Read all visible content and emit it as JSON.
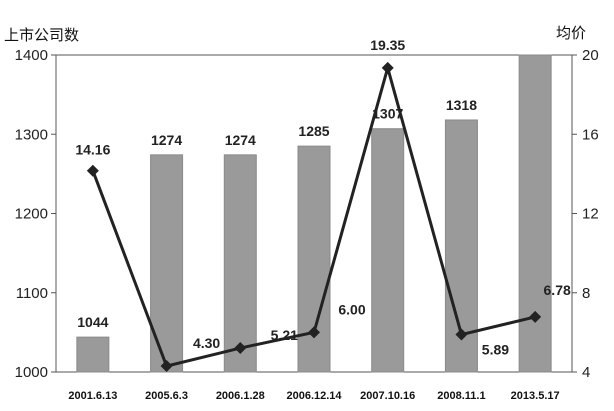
{
  "chart_data": {
    "type": "bar",
    "categories": [
      "2001.6.13",
      "2005.6.3",
      "2006.1.28",
      "2006.12.14",
      "2007.10.16",
      "2008.11.1",
      "2013.5.17"
    ],
    "series": [
      {
        "kind": "bar",
        "axis": "left",
        "values": [
          1044,
          1274,
          1274,
          1285,
          1307,
          1318,
          1400
        ],
        "labels": [
          "1044",
          "1274",
          "1274",
          "1285",
          "1307",
          "1318",
          ""
        ],
        "color": "#9a9a9a"
      },
      {
        "kind": "line",
        "axis": "right",
        "values": [
          14.16,
          4.3,
          5.21,
          6.0,
          19.35,
          5.89,
          6.78
        ],
        "labels": [
          "14.16",
          "4.30",
          "5.21",
          "6.00",
          "19.35",
          "5.89",
          "6.78"
        ],
        "color": "#222222"
      }
    ],
    "ylabel_left": "上市公司数",
    "ylabel_right": "均价",
    "ylim_left": [
      1000,
      1400
    ],
    "yticks_left": [
      "1000",
      "1100",
      "1200",
      "1300",
      "1400"
    ],
    "ylim_right": [
      4,
      20
    ],
    "yticks_right": [
      "4",
      "8",
      "12",
      "16",
      "20"
    ],
    "grid": false,
    "legend": "none"
  }
}
